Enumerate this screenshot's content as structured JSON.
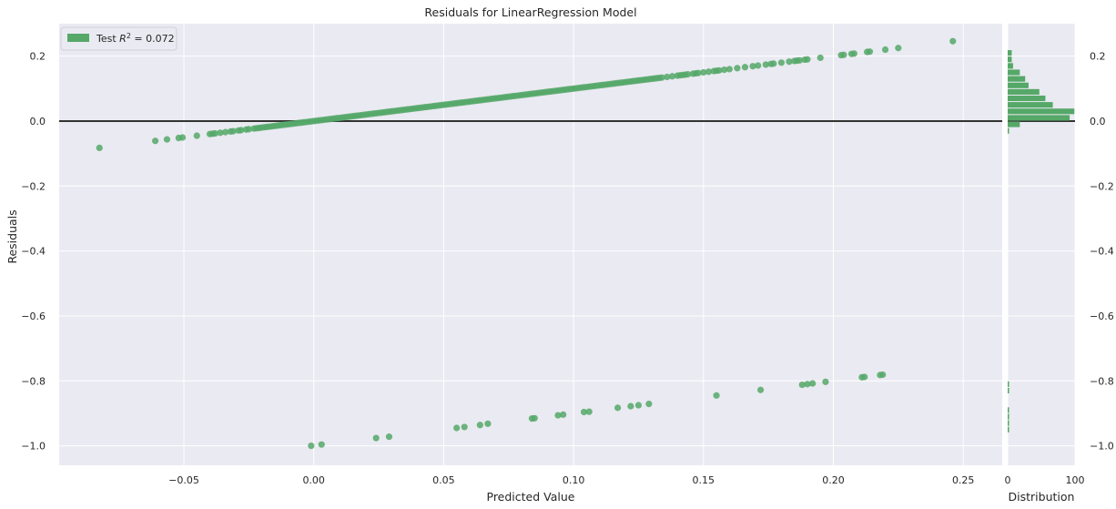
{
  "chart_data": {
    "type": "scatter",
    "title": "Residuals for LinearRegression Model",
    "xlabel": "Predicted Value",
    "ylabel": "Residuals",
    "xlim": [
      -0.098,
      0.265
    ],
    "ylim": [
      -1.06,
      0.3
    ],
    "xticks": [
      -0.05,
      0.0,
      0.05,
      0.1,
      0.15,
      0.2,
      0.25
    ],
    "xtick_labels": [
      "−0.05",
      "0.00",
      "0.05",
      "0.10",
      "0.15",
      "0.20",
      "0.25"
    ],
    "yticks": [
      -1.0,
      -0.8,
      -0.6,
      -0.4,
      -0.2,
      0.0,
      0.2
    ],
    "ytick_labels": [
      "−1.0",
      "−0.8",
      "−0.6",
      "−0.4",
      "−0.2",
      "0.0",
      "0.2"
    ],
    "zero_line": 0.0,
    "grid": true,
    "legend": {
      "position": "top-left",
      "label_prefix": "Test ",
      "label_math": "R",
      "label_sup": "2",
      "label_suffix": " = 0.072"
    },
    "colors": {
      "points": "#55a868",
      "background": "#eaeaf2",
      "grid": "#ffffff",
      "zero_line": "#333333"
    },
    "series": [
      {
        "name": "Test",
        "upper_x": [
          -0.0825,
          -0.061,
          -0.0565,
          -0.052,
          -0.0505,
          -0.045,
          -0.04,
          -0.039,
          -0.038,
          -0.036,
          -0.034,
          -0.032,
          -0.031,
          -0.029,
          -0.028,
          -0.026,
          -0.025,
          -0.023,
          -0.022,
          -0.021,
          -0.02,
          -0.019,
          -0.018,
          -0.017,
          -0.016,
          -0.015,
          -0.014,
          -0.013,
          -0.012,
          -0.011,
          -0.01,
          -0.009,
          -0.008,
          -0.007,
          -0.006,
          -0.005,
          -0.004,
          -0.003,
          -0.002,
          -0.001,
          0.0,
          0.001,
          0.002,
          0.003,
          0.004,
          0.005,
          0.006,
          0.007,
          0.008,
          0.009,
          0.01,
          0.011,
          0.012,
          0.013,
          0.014,
          0.015,
          0.016,
          0.017,
          0.018,
          0.019,
          0.02,
          0.021,
          0.022,
          0.023,
          0.024,
          0.025,
          0.026,
          0.027,
          0.028,
          0.029,
          0.03,
          0.031,
          0.032,
          0.033,
          0.034,
          0.035,
          0.036,
          0.037,
          0.038,
          0.039,
          0.04,
          0.041,
          0.042,
          0.043,
          0.044,
          0.045,
          0.046,
          0.047,
          0.048,
          0.049,
          0.05,
          0.051,
          0.052,
          0.053,
          0.054,
          0.055,
          0.056,
          0.057,
          0.058,
          0.059,
          0.06,
          0.061,
          0.062,
          0.063,
          0.064,
          0.065,
          0.066,
          0.067,
          0.068,
          0.069,
          0.07,
          0.071,
          0.072,
          0.073,
          0.074,
          0.075,
          0.076,
          0.077,
          0.078,
          0.079,
          0.08,
          0.081,
          0.082,
          0.083,
          0.084,
          0.085,
          0.086,
          0.087,
          0.088,
          0.089,
          0.09,
          0.091,
          0.092,
          0.093,
          0.094,
          0.095,
          0.096,
          0.097,
          0.098,
          0.099,
          0.1,
          0.101,
          0.102,
          0.103,
          0.104,
          0.105,
          0.106,
          0.107,
          0.108,
          0.109,
          0.11,
          0.111,
          0.112,
          0.113,
          0.114,
          0.115,
          0.116,
          0.117,
          0.118,
          0.119,
          0.12,
          0.121,
          0.122,
          0.123,
          0.124,
          0.125,
          0.126,
          0.127,
          0.128,
          0.129,
          0.13,
          0.131,
          0.132,
          0.133,
          0.134,
          0.136,
          0.138,
          0.14,
          0.141,
          0.142,
          0.143,
          0.144,
          0.146,
          0.147,
          0.148,
          0.15,
          0.152,
          0.154,
          0.155,
          0.156,
          0.158,
          0.16,
          0.163,
          0.166,
          0.169,
          0.171,
          0.174,
          0.176,
          0.177,
          0.18,
          0.183,
          0.185,
          0.186,
          0.187,
          0.189,
          0.19,
          0.195,
          0.203,
          0.204,
          0.207,
          0.208,
          0.213,
          0.214,
          0.22,
          0.225,
          0.246
        ],
        "upper_y": [
          -0.0825,
          -0.061,
          -0.0565,
          -0.052,
          -0.0505,
          -0.045,
          -0.04,
          -0.039,
          -0.038,
          -0.036,
          -0.034,
          -0.032,
          -0.031,
          -0.029,
          -0.028,
          -0.026,
          -0.025,
          -0.023,
          -0.022,
          -0.021,
          -0.02,
          -0.019,
          -0.018,
          -0.017,
          -0.016,
          -0.015,
          -0.014,
          -0.013,
          -0.012,
          -0.011,
          -0.01,
          -0.009,
          -0.008,
          -0.007,
          -0.006,
          -0.005,
          -0.004,
          -0.003,
          -0.002,
          -0.001,
          0.0,
          0.001,
          0.002,
          0.003,
          0.004,
          0.005,
          0.006,
          0.007,
          0.008,
          0.009,
          0.01,
          0.011,
          0.012,
          0.013,
          0.014,
          0.015,
          0.016,
          0.017,
          0.018,
          0.019,
          0.02,
          0.021,
          0.022,
          0.023,
          0.024,
          0.025,
          0.026,
          0.027,
          0.028,
          0.029,
          0.03,
          0.031,
          0.032,
          0.033,
          0.034,
          0.035,
          0.036,
          0.037,
          0.038,
          0.039,
          0.04,
          0.041,
          0.042,
          0.043,
          0.044,
          0.045,
          0.046,
          0.047,
          0.048,
          0.049,
          0.05,
          0.051,
          0.052,
          0.053,
          0.054,
          0.055,
          0.056,
          0.057,
          0.058,
          0.059,
          0.06,
          0.061,
          0.062,
          0.063,
          0.064,
          0.065,
          0.066,
          0.067,
          0.068,
          0.069,
          0.07,
          0.071,
          0.072,
          0.073,
          0.074,
          0.075,
          0.076,
          0.077,
          0.078,
          0.079,
          0.08,
          0.081,
          0.082,
          0.083,
          0.084,
          0.085,
          0.086,
          0.087,
          0.088,
          0.089,
          0.09,
          0.091,
          0.092,
          0.093,
          0.094,
          0.095,
          0.096,
          0.097,
          0.098,
          0.099,
          0.1,
          0.101,
          0.102,
          0.103,
          0.104,
          0.105,
          0.106,
          0.107,
          0.108,
          0.109,
          0.11,
          0.111,
          0.112,
          0.113,
          0.114,
          0.115,
          0.116,
          0.117,
          0.118,
          0.119,
          0.12,
          0.121,
          0.122,
          0.123,
          0.124,
          0.125,
          0.126,
          0.127,
          0.128,
          0.129,
          0.13,
          0.131,
          0.132,
          0.133,
          0.134,
          0.136,
          0.138,
          0.14,
          0.141,
          0.142,
          0.143,
          0.144,
          0.146,
          0.147,
          0.148,
          0.15,
          0.152,
          0.154,
          0.155,
          0.156,
          0.158,
          0.16,
          0.163,
          0.166,
          0.169,
          0.171,
          0.174,
          0.176,
          0.177,
          0.18,
          0.183,
          0.185,
          0.186,
          0.187,
          0.189,
          0.19,
          0.195,
          0.203,
          0.204,
          0.207,
          0.208,
          0.213,
          0.214,
          0.22,
          0.225,
          0.246
        ],
        "lower_x": [
          -0.001,
          0.003,
          0.024,
          0.029,
          0.055,
          0.058,
          0.064,
          0.067,
          0.084,
          0.085,
          0.094,
          0.096,
          0.104,
          0.106,
          0.117,
          0.122,
          0.125,
          0.129,
          0.155,
          0.172,
          0.188,
          0.19,
          0.192,
          0.197,
          0.211,
          0.212,
          0.218,
          0.219
        ],
        "lower_y": [
          -1.0,
          -0.996,
          -0.976,
          -0.972,
          -0.945,
          -0.942,
          -0.936,
          -0.932,
          -0.916,
          -0.915,
          -0.906,
          -0.904,
          -0.896,
          -0.895,
          -0.883,
          -0.878,
          -0.875,
          -0.871,
          -0.845,
          -0.828,
          -0.812,
          -0.81,
          -0.808,
          -0.803,
          -0.789,
          -0.788,
          -0.782,
          -0.781
        ]
      }
    ],
    "histogram": {
      "xlabel": "Distribution",
      "xlim": [
        0,
        100
      ],
      "xticks": [
        0,
        100
      ],
      "xtick_labels": [
        "0",
        "100"
      ],
      "bins_center": [
        0.21,
        0.19,
        0.17,
        0.15,
        0.13,
        0.11,
        0.09,
        0.07,
        0.05,
        0.03,
        0.01,
        -0.01,
        -0.03,
        -0.05,
        -0.07,
        -0.81,
        -0.83,
        -0.89,
        -0.91,
        -0.93,
        -0.95
      ],
      "counts": [
        6,
        6,
        8,
        18,
        26,
        31,
        47,
        56,
        67,
        99,
        92,
        18,
        1,
        0,
        0,
        2,
        2,
        2,
        2,
        2,
        2
      ],
      "right_ytick_labels": [
        "−1.0",
        "−0.8",
        "−0.6",
        "−0.4",
        "−0.2",
        "0.0",
        "0.2"
      ]
    }
  }
}
